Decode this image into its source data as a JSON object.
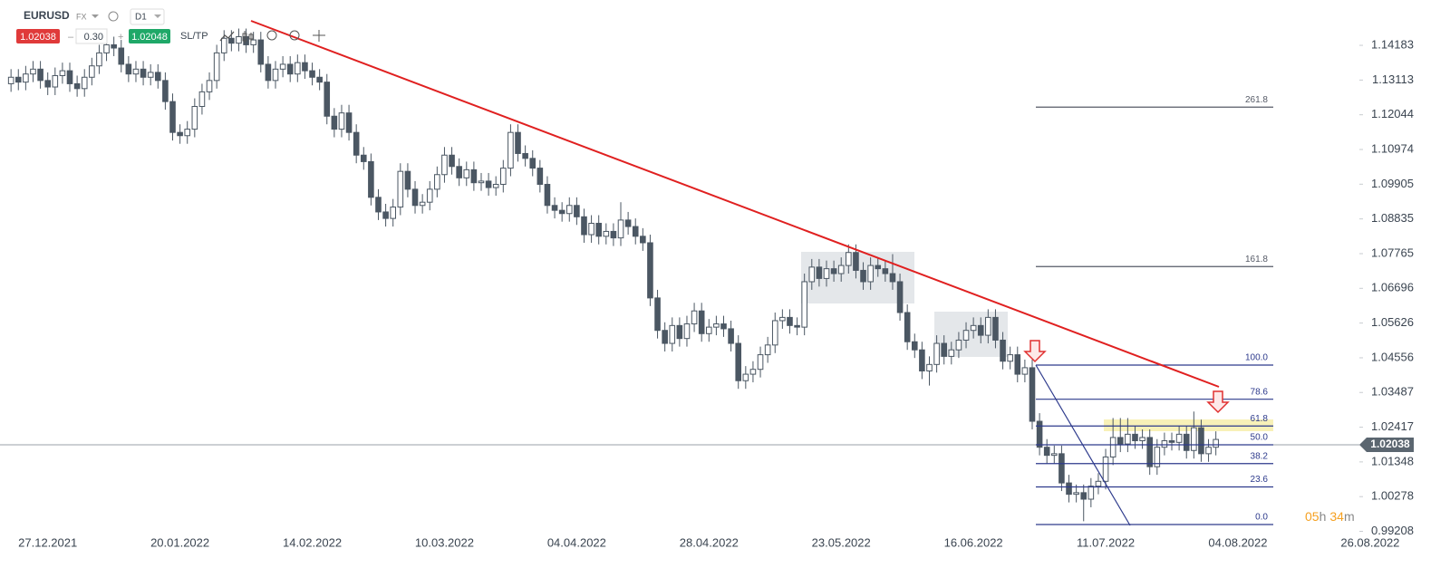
{
  "header": {
    "symbol": "EURUSD",
    "market": "FX",
    "interval": "D1",
    "bid": "1.02038",
    "spread": "0.30",
    "ask": "1.02048",
    "sltp": "SL/TP"
  },
  "chart_data": {
    "type": "candlestick",
    "up_color": "#ffffff",
    "down_color": "#4b5763",
    "xlim": [
      -1.5,
      186
    ],
    "xticks": [
      {
        "value": 5,
        "label": "27.12.2021"
      },
      {
        "value": 23,
        "label": "20.01.2022"
      },
      {
        "value": 41,
        "label": "14.02.2022"
      },
      {
        "value": 59,
        "label": "10.03.2022"
      },
      {
        "value": 77,
        "label": "04.04.2022"
      },
      {
        "value": 95,
        "label": "28.04.2022"
      },
      {
        "value": 113,
        "label": "23.05.2022"
      },
      {
        "value": 131,
        "label": "16.06.2022"
      },
      {
        "value": 149,
        "label": "11.07.2022"
      },
      {
        "value": 167,
        "label": "04.08.2022"
      },
      {
        "value": 185,
        "label": "26.08.2022"
      }
    ],
    "ylim": [
      0.99,
      1.1558
    ],
    "yticks": [
      1.14183,
      1.13113,
      1.12044,
      1.10974,
      1.09905,
      1.08835,
      1.07765,
      1.06696,
      1.05626,
      1.04556,
      1.03487,
      1.02417,
      1.01348,
      1.00278,
      0.99208
    ],
    "current_price": 1.02038,
    "fib_levels": [
      {
        "value": 261.8,
        "label": "261.8"
      },
      {
        "value": 161.8,
        "label": "161.8"
      },
      {
        "value": 100,
        "label": "100.0"
      },
      {
        "value": 78.6,
        "label": "78.6"
      },
      {
        "value": 61.8,
        "label": "61.8"
      },
      {
        "value": 50,
        "label": "50.0"
      },
      {
        "value": 38.2,
        "label": "38.2"
      },
      {
        "value": 23.6,
        "label": "23.6"
      },
      {
        "value": 0,
        "label": "0.0"
      }
    ],
    "timer": {
      "hours": "05",
      "h": "h",
      "minutes": "34",
      "m": "m"
    },
    "ohlc": [
      [
        1.13,
        1.1345,
        1.1275,
        1.132
      ],
      [
        1.132,
        1.1345,
        1.128,
        1.1305
      ],
      [
        1.1305,
        1.1355,
        1.128,
        1.133
      ],
      [
        1.133,
        1.137,
        1.1305,
        1.1345
      ],
      [
        1.1345,
        1.137,
        1.1285,
        1.131
      ],
      [
        1.131,
        1.1335,
        1.1265,
        1.129
      ],
      [
        1.129,
        1.135,
        1.1265,
        1.1325
      ],
      [
        1.1325,
        1.1365,
        1.13,
        1.134
      ],
      [
        1.134,
        1.1365,
        1.1275,
        1.13
      ],
      [
        1.13,
        1.1325,
        1.126,
        1.1285
      ],
      [
        1.1285,
        1.1345,
        1.126,
        1.132
      ],
      [
        1.132,
        1.138,
        1.1295,
        1.1355
      ],
      [
        1.1355,
        1.142,
        1.133,
        1.1395
      ],
      [
        1.1395,
        1.1445,
        1.137,
        1.142
      ],
      [
        1.142,
        1.1445,
        1.1385,
        1.141
      ],
      [
        1.141,
        1.1435,
        1.1335,
        1.136
      ],
      [
        1.136,
        1.1385,
        1.1305,
        1.133
      ],
      [
        1.133,
        1.137,
        1.1305,
        1.1345
      ],
      [
        1.1345,
        1.137,
        1.1295,
        1.132
      ],
      [
        1.132,
        1.136,
        1.1295,
        1.1335
      ],
      [
        1.1335,
        1.136,
        1.1285,
        1.131
      ],
      [
        1.131,
        1.1335,
        1.122,
        1.1245
      ],
      [
        1.1245,
        1.127,
        1.1125,
        1.115
      ],
      [
        1.115,
        1.1175,
        1.1115,
        1.114
      ],
      [
        1.114,
        1.1185,
        1.1115,
        1.116
      ],
      [
        1.116,
        1.1255,
        1.1135,
        1.123
      ],
      [
        1.123,
        1.13,
        1.1205,
        1.1275
      ],
      [
        1.1275,
        1.1335,
        1.125,
        1.131
      ],
      [
        1.131,
        1.142,
        1.1285,
        1.1395
      ],
      [
        1.1395,
        1.1465,
        1.137,
        1.144
      ],
      [
        1.144,
        1.1465,
        1.14,
        1.1425
      ],
      [
        1.1425,
        1.147,
        1.14,
        1.1445
      ],
      [
        1.1445,
        1.147,
        1.1395,
        1.142
      ],
      [
        1.142,
        1.146,
        1.1395,
        1.1435
      ],
      [
        1.1435,
        1.146,
        1.1335,
        1.136
      ],
      [
        1.136,
        1.1385,
        1.1285,
        1.131
      ],
      [
        1.131,
        1.137,
        1.1285,
        1.1345
      ],
      [
        1.1345,
        1.1385,
        1.132,
        1.136
      ],
      [
        1.136,
        1.1385,
        1.1305,
        1.133
      ],
      [
        1.133,
        1.139,
        1.1305,
        1.1365
      ],
      [
        1.1365,
        1.139,
        1.1315,
        1.134
      ],
      [
        1.134,
        1.1365,
        1.1295,
        1.132
      ],
      [
        1.132,
        1.1345,
        1.128,
        1.1305
      ],
      [
        1.1305,
        1.133,
        1.1175,
        1.12
      ],
      [
        1.12,
        1.1225,
        1.1135,
        1.116
      ],
      [
        1.116,
        1.1235,
        1.1135,
        1.121
      ],
      [
        1.121,
        1.1235,
        1.1125,
        1.115
      ],
      [
        1.115,
        1.1175,
        1.1055,
        1.108
      ],
      [
        1.108,
        1.1105,
        1.1035,
        1.106
      ],
      [
        1.106,
        1.1085,
        1.0925,
        1.095
      ],
      [
        1.095,
        1.0975,
        1.088,
        1.0905
      ],
      [
        1.0905,
        1.093,
        1.086,
        1.0885
      ],
      [
        1.0885,
        1.0945,
        1.086,
        1.092
      ],
      [
        1.092,
        1.1055,
        1.0895,
        1.103
      ],
      [
        1.103,
        1.1055,
        1.095,
        1.0975
      ],
      [
        1.0975,
        1.1,
        1.09,
        1.0925
      ],
      [
        1.0925,
        1.096,
        1.09,
        1.0935
      ],
      [
        1.0935,
        1.1,
        1.091,
        1.0975
      ],
      [
        1.0975,
        1.1045,
        1.095,
        1.102
      ],
      [
        1.102,
        1.1105,
        1.0995,
        1.108
      ],
      [
        1.108,
        1.1105,
        1.102,
        1.1045
      ],
      [
        1.1045,
        1.107,
        1.0985,
        1.101
      ],
      [
        1.101,
        1.106,
        1.0985,
        1.1035
      ],
      [
        1.1035,
        1.106,
        1.097,
        1.0995
      ],
      [
        1.0995,
        1.1025,
        1.097,
        1.1
      ],
      [
        1.1,
        1.1025,
        1.0955,
        1.098
      ],
      [
        1.098,
        1.1015,
        1.0955,
        1.099
      ],
      [
        1.099,
        1.1065,
        1.0965,
        1.104
      ],
      [
        1.104,
        1.1175,
        1.1015,
        1.115
      ],
      [
        1.115,
        1.1175,
        1.106,
        1.1085
      ],
      [
        1.1085,
        1.111,
        1.1045,
        1.107
      ],
      [
        1.107,
        1.1095,
        1.1015,
        1.104
      ],
      [
        1.104,
        1.1065,
        1.0965,
        1.099
      ],
      [
        1.099,
        1.1015,
        1.09,
        1.0925
      ],
      [
        1.0925,
        1.095,
        1.0885,
        1.091
      ],
      [
        1.091,
        1.0935,
        1.0875,
        1.09
      ],
      [
        1.09,
        1.095,
        1.0875,
        1.0925
      ],
      [
        1.0925,
        1.095,
        1.0865,
        1.089
      ],
      [
        1.089,
        1.0915,
        1.081,
        1.0835
      ],
      [
        1.0835,
        1.0895,
        1.081,
        1.087
      ],
      [
        1.087,
        1.0895,
        1.0805,
        1.083
      ],
      [
        1.083,
        1.087,
        1.0805,
        1.0845
      ],
      [
        1.0845,
        1.087,
        1.08,
        1.0825
      ],
      [
        1.0825,
        1.0935,
        1.08,
        1.088
      ],
      [
        1.088,
        1.0905,
        1.0835,
        1.086
      ],
      [
        1.086,
        1.0885,
        1.0805,
        1.083
      ],
      [
        1.083,
        1.0855,
        1.0785,
        1.081
      ],
      [
        1.081,
        1.0835,
        1.0615,
        1.064
      ],
      [
        1.064,
        1.0665,
        1.0515,
        1.054
      ],
      [
        1.054,
        1.0565,
        1.0475,
        1.05
      ],
      [
        1.05,
        1.058,
        1.0475,
        1.0555
      ],
      [
        1.0555,
        1.058,
        1.049,
        1.0515
      ],
      [
        1.0515,
        1.0585,
        1.049,
        1.056
      ],
      [
        1.056,
        1.0625,
        1.0535,
        1.06
      ],
      [
        1.06,
        1.0625,
        1.0505,
        1.053
      ],
      [
        1.053,
        1.0575,
        1.0505,
        1.055
      ],
      [
        1.055,
        1.0585,
        1.0525,
        1.056
      ],
      [
        1.056,
        1.0585,
        1.052,
        1.0545
      ],
      [
        1.0545,
        1.057,
        1.0475,
        1.05
      ],
      [
        1.05,
        1.0525,
        1.036,
        1.0385
      ],
      [
        1.0385,
        1.043,
        1.036,
        1.0405
      ],
      [
        1.0405,
        1.0445,
        1.038,
        1.042
      ],
      [
        1.042,
        1.049,
        1.0395,
        1.0465
      ],
      [
        1.0465,
        1.052,
        1.044,
        1.0495
      ],
      [
        1.0495,
        1.0595,
        1.047,
        1.057
      ],
      [
        1.057,
        1.0605,
        1.0545,
        1.058
      ],
      [
        1.058,
        1.0605,
        1.053,
        1.0555
      ],
      [
        1.0555,
        1.058,
        1.0525,
        1.055
      ],
      [
        1.055,
        1.0715,
        1.0525,
        1.069
      ],
      [
        1.069,
        1.076,
        1.0665,
        1.0735
      ],
      [
        1.0735,
        1.076,
        1.0675,
        1.07
      ],
      [
        1.07,
        1.0755,
        1.0675,
        1.073
      ],
      [
        1.073,
        1.0755,
        1.069,
        1.0715
      ],
      [
        1.0715,
        1.0765,
        1.069,
        1.074
      ],
      [
        1.074,
        1.0805,
        1.0715,
        1.078
      ],
      [
        1.078,
        1.0805,
        1.07,
        1.0725
      ],
      [
        1.0725,
        1.075,
        1.0665,
        1.069
      ],
      [
        1.069,
        1.0765,
        1.0665,
        1.074
      ],
      [
        1.074,
        1.0765,
        1.0705,
        1.073
      ],
      [
        1.073,
        1.0755,
        1.069,
        1.0715
      ],
      [
        1.0715,
        1.0775,
        1.0665,
        1.069
      ],
      [
        1.069,
        1.0715,
        1.057,
        1.0595
      ],
      [
        1.0595,
        1.062,
        1.048,
        1.0505
      ],
      [
        1.0505,
        1.053,
        1.0455,
        1.048
      ],
      [
        1.048,
        1.0505,
        1.039,
        1.0415
      ],
      [
        1.0415,
        1.046,
        1.037,
        1.0435
      ],
      [
        1.0435,
        1.0525,
        1.041,
        1.05
      ],
      [
        1.05,
        1.0525,
        1.0435,
        1.046
      ],
      [
        1.046,
        1.0505,
        1.0435,
        1.048
      ],
      [
        1.048,
        1.0535,
        1.0455,
        1.051
      ],
      [
        1.051,
        1.0565,
        1.0485,
        1.054
      ],
      [
        1.054,
        1.058,
        1.0515,
        1.0555
      ],
      [
        1.0555,
        1.058,
        1.05,
        1.0525
      ],
      [
        1.0525,
        1.0605,
        1.05,
        1.058
      ],
      [
        1.058,
        1.0605,
        1.0485,
        1.051
      ],
      [
        1.051,
        1.0535,
        1.042,
        1.0445
      ],
      [
        1.0445,
        1.049,
        1.042,
        1.0465
      ],
      [
        1.0465,
        1.049,
        1.038,
        1.0405
      ],
      [
        1.0405,
        1.045,
        1.038,
        1.0425
      ],
      [
        1.0425,
        1.045,
        1.0235,
        1.026
      ],
      [
        1.026,
        1.0285,
        1.0155,
        1.018
      ],
      [
        1.018,
        1.0205,
        1.013,
        1.0155
      ],
      [
        1.0155,
        1.0185,
        1.013,
        1.016
      ],
      [
        1.016,
        1.0185,
        1.0045,
        1.007
      ],
      [
        1.007,
        1.0095,
        1.001,
        1.0035
      ],
      [
        1.0035,
        1.0065,
        1.001,
        1.004
      ],
      [
        1.004,
        1.0065,
        0.9952,
        1.002
      ],
      [
        1.002,
        1.0085,
        0.9995,
        1.006
      ],
      [
        1.006,
        1.01,
        1.0035,
        1.0075
      ],
      [
        1.0075,
        1.0175,
        1.005,
        1.015
      ],
      [
        1.015,
        1.027,
        1.0125,
        1.021
      ],
      [
        1.021,
        1.027,
        1.0165,
        1.019
      ],
      [
        1.019,
        1.027,
        1.0165,
        1.022
      ],
      [
        1.022,
        1.0245,
        1.0175,
        1.02
      ],
      [
        1.02,
        1.0235,
        1.0175,
        1.021
      ],
      [
        1.021,
        1.0235,
        1.0095,
        1.012
      ],
      [
        1.012,
        1.0205,
        1.0095,
        1.018
      ],
      [
        1.018,
        1.0225,
        1.0155,
        1.02
      ],
      [
        1.02,
        1.0225,
        1.017,
        1.0195
      ],
      [
        1.0195,
        1.0245,
        1.017,
        1.022
      ],
      [
        1.022,
        1.0245,
        1.0145,
        1.017
      ],
      [
        1.017,
        1.029,
        1.0145,
        1.024
      ],
      [
        1.024,
        1.0265,
        1.0135,
        1.016
      ],
      [
        1.016,
        1.0205,
        1.0135,
        1.018
      ],
      [
        1.018,
        1.0229,
        1.0155,
        1.0204
      ]
    ]
  }
}
